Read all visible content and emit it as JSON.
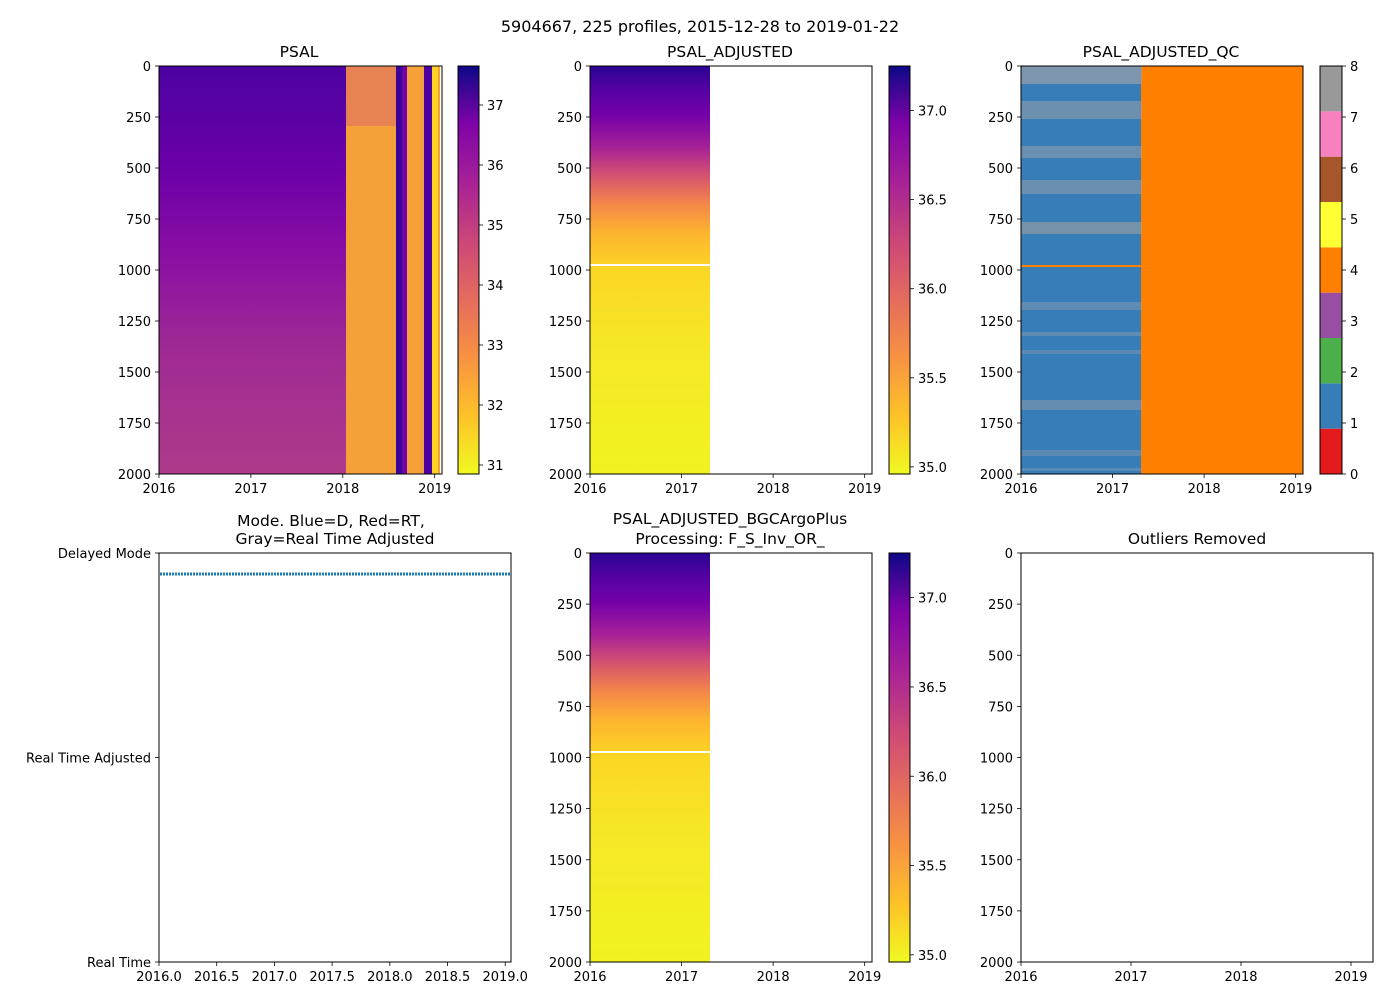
{
  "figure_title": "5904667, 225 profiles, 2015-12-28 to 2019-01-22",
  "chart_data": [
    {
      "id": "psal",
      "type": "heatmap",
      "title": "PSAL",
      "xlim": [
        2016.0,
        2019.08
      ],
      "ylim": [
        2000,
        0
      ],
      "xticks": [
        2016,
        2017,
        2018,
        2019
      ],
      "xticklabels": [
        "2016",
        "2017",
        "2018",
        "2019"
      ],
      "yticks": [
        0,
        250,
        500,
        750,
        1000,
        1250,
        1500,
        1750,
        2000
      ],
      "yticklabels": [
        "0",
        "250",
        "500",
        "750",
        "1000",
        "1250",
        "1500",
        "1750",
        "2000"
      ],
      "data_extent_x": [
        2016.0,
        2019.05
      ],
      "colorbar": {
        "cmap": "plasma_r",
        "range": [
          30.85,
          37.65
        ],
        "ticks": [
          31,
          32,
          33,
          34,
          35,
          36,
          37
        ],
        "ticklabels": [
          "31",
          "32",
          "33",
          "34",
          "35",
          "36",
          "37"
        ]
      }
    },
    {
      "id": "psal-adjusted",
      "type": "heatmap",
      "title": "PSAL_ADJUSTED",
      "xlim": [
        2016.0,
        2019.08
      ],
      "ylim": [
        2000,
        0
      ],
      "xticks": [
        2016,
        2017,
        2018,
        2019
      ],
      "xticklabels": [
        "2016",
        "2017",
        "2018",
        "2019"
      ],
      "yticks": [
        0,
        250,
        500,
        750,
        1000,
        1250,
        1500,
        1750,
        2000
      ],
      "yticklabels": [
        "0",
        "250",
        "500",
        "750",
        "1000",
        "1250",
        "1500",
        "1750",
        "2000"
      ],
      "data_extent_x": [
        2016.0,
        2017.31
      ],
      "gap_depth": 980,
      "colorbar": {
        "cmap": "plasma_r",
        "range": [
          34.96,
          37.25
        ],
        "ticks": [
          35.0,
          35.5,
          36.0,
          36.5,
          37.0
        ],
        "ticklabels": [
          "35.0",
          "35.5",
          "36.0",
          "36.5",
          "37.0"
        ]
      }
    },
    {
      "id": "psal-adjusted-qc",
      "type": "heatmap",
      "title": "PSAL_ADJUSTED_QC",
      "xlim": [
        2016.0,
        2019.08
      ],
      "ylim": [
        2000,
        0
      ],
      "xticks": [
        2016,
        2017,
        2018,
        2019
      ],
      "xticklabels": [
        "2016",
        "2017",
        "2018",
        "2019"
      ],
      "yticks": [
        0,
        250,
        500,
        750,
        1000,
        1250,
        1500,
        1750,
        2000
      ],
      "yticklabels": [
        "0",
        "250",
        "500",
        "750",
        "1000",
        "1250",
        "1500",
        "1750",
        "2000"
      ],
      "segments": [
        {
          "x": [
            2016.0,
            2017.31
          ],
          "flag": 1
        },
        {
          "x": [
            2017.31,
            2019.05
          ],
          "flag": 4
        }
      ],
      "flag8_depth_bands": [
        [
          0,
          90
        ],
        [
          170,
          260
        ],
        [
          390,
          450
        ],
        [
          560,
          690
        ],
        [
          820,
          900
        ]
      ],
      "flag4_depth": 980,
      "colorbar": {
        "cmap": "Set1",
        "range": [
          0,
          8
        ],
        "colors": [
          "#e41a1c",
          "#377eb8",
          "#4daf4a",
          "#984ea3",
          "#ff7f00",
          "#ffff33",
          "#a65628",
          "#f781bf",
          "#999999"
        ],
        "ticks": [
          0,
          1,
          2,
          3,
          4,
          5,
          6,
          7,
          8
        ],
        "ticklabels": [
          "0",
          "1",
          "2",
          "3",
          "4",
          "5",
          "6",
          "7",
          "8"
        ]
      }
    },
    {
      "id": "mode",
      "type": "scatter",
      "title": "Mode. Blue=D, Red=RT,",
      "title2": "Gray=Real Time Adjusted",
      "xlim": [
        2016.0,
        2019.05
      ],
      "ylim": [
        0,
        2
      ],
      "xticks": [
        2016.0,
        2016.5,
        2017.0,
        2017.5,
        2018.0,
        2018.5,
        2019.0
      ],
      "xticklabels": [
        "2016.0",
        "2016.5",
        "2017.0",
        "2017.5",
        "2018.0",
        "2018.5",
        "2019.0"
      ],
      "yticks": [
        0,
        1,
        2
      ],
      "yticklabels": [
        "Real Time",
        "Real Time Adjusted",
        "Delayed Mode"
      ],
      "series": [
        {
          "name": "D",
          "color": "#1f77b4",
          "x_range": [
            2016.0,
            2019.05
          ],
          "y": 2,
          "count": 225
        }
      ]
    },
    {
      "id": "psal-adjusted-bgc",
      "type": "heatmap",
      "title": "PSAL_ADJUSTED_BGCArgoPlus",
      "title2": "Processing: F_S_Inv_OR_",
      "xlim": [
        2016.0,
        2019.08
      ],
      "ylim": [
        2000,
        0
      ],
      "xticks": [
        2016,
        2017,
        2018,
        2019
      ],
      "xticklabels": [
        "2016",
        "2017",
        "2018",
        "2019"
      ],
      "yticks": [
        0,
        250,
        500,
        750,
        1000,
        1250,
        1500,
        1750,
        2000
      ],
      "yticklabels": [
        "0",
        "250",
        "500",
        "750",
        "1000",
        "1250",
        "1500",
        "1750",
        "2000"
      ],
      "data_extent_x": [
        2016.0,
        2017.31
      ],
      "gap_depth": 980,
      "colorbar": {
        "cmap": "plasma_r",
        "range": [
          34.96,
          37.25
        ],
        "ticks": [
          35.0,
          35.5,
          36.0,
          36.5,
          37.0
        ],
        "ticklabels": [
          "35.0",
          "35.5",
          "36.0",
          "36.5",
          "37.0"
        ]
      }
    },
    {
      "id": "outliers",
      "type": "scatter",
      "title": "Outliers Removed",
      "xlim": [
        2016.0,
        2019.2
      ],
      "ylim": [
        2000,
        0
      ],
      "xticks": [
        2016,
        2017,
        2018,
        2019
      ],
      "xticklabels": [
        "2016",
        "2017",
        "2018",
        "2019"
      ],
      "yticks": [
        0,
        250,
        500,
        750,
        1000,
        1250,
        1500,
        1750,
        2000
      ],
      "yticklabels": [
        "0",
        "250",
        "500",
        "750",
        "1000",
        "1250",
        "1500",
        "1750",
        "2000"
      ],
      "series": []
    }
  ]
}
